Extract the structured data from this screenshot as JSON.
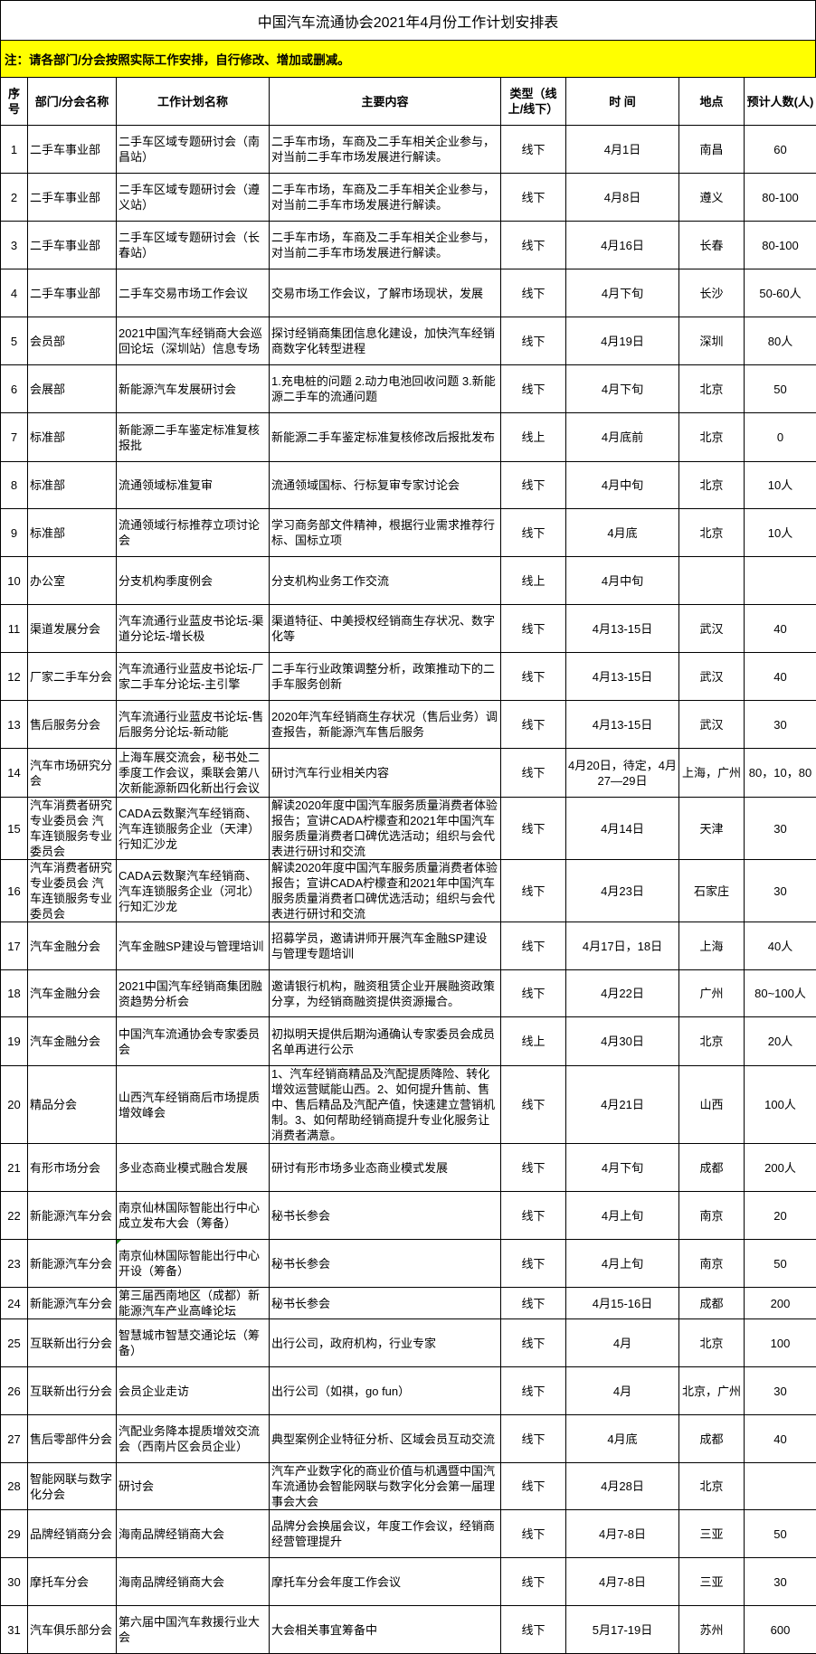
{
  "title": "中国汽车流通协会2021年4月份工作计划安排表",
  "note": "注：请各部门/分会按照实际工作安排，自行修改、增加或删减。",
  "columns": [
    "序号",
    "部门/分会名称",
    "工作计划名称",
    "主要内容",
    "类型（线上/线下）",
    "时 间",
    "地点",
    "预计人数(人)"
  ],
  "rows": [
    [
      "1",
      "二手车事业部",
      "二手车区域专题研讨会（南昌站）",
      "二手车市场，车商及二手车相关企业参与，对当前二手车市场发展进行解读。",
      "线下",
      "4月1日",
      "南昌",
      "60"
    ],
    [
      "2",
      "二手车事业部",
      "二手车区域专题研讨会（遵义站）",
      "二手车市场，车商及二手车相关企业参与，对当前二手车市场发展进行解读。",
      "线下",
      "4月8日",
      "遵义",
      "80-100"
    ],
    [
      "3",
      "二手车事业部",
      "二手车区域专题研讨会（长春站）",
      "二手车市场，车商及二手车相关企业参与，对当前二手车市场发展进行解读。",
      "线下",
      "4月16日",
      "长春",
      "80-100"
    ],
    [
      "4",
      "二手车事业部",
      "二手车交易市场工作会议",
      "交易市场工作会议，了解市场现状，发展",
      "线下",
      "4月下旬",
      "长沙",
      "50-60人"
    ],
    [
      "5",
      "会员部",
      "2021中国汽车经销商大会巡回论坛（深圳站）信息专场",
      "探讨经销商集团信息化建设，加快汽车经销商数字化转型进程",
      "线下",
      "4月19日",
      "深圳",
      "80人"
    ],
    [
      "6",
      "会展部",
      "新能源汽车发展研讨会",
      "1.充电桩的问题 2.动力电池回收问题 3.新能源二手车的流通问题",
      "线下",
      "4月下旬",
      "北京",
      "50"
    ],
    [
      "7",
      "标准部",
      "新能源二手车鉴定标准复核报批",
      "新能源二手车鉴定标准复核修改后报批发布",
      "线上",
      "4月底前",
      "北京",
      "0"
    ],
    [
      "8",
      "标准部",
      "流通领域标准复审",
      "流通领域国标、行标复审专家讨论会",
      "线下",
      "4月中旬",
      "北京",
      "10人"
    ],
    [
      "9",
      "标准部",
      "流通领域行标推荐立项讨论会",
      "学习商务部文件精神，根据行业需求推荐行标、国标立项",
      "线下",
      "4月底",
      "北京",
      "10人"
    ],
    [
      "10",
      "办公室",
      "分支机构季度例会",
      "分支机构业务工作交流",
      "线上",
      "4月中旬",
      "",
      ""
    ],
    [
      "11",
      "渠道发展分会",
      "汽车流通行业蓝皮书论坛-渠道分论坛-增长极",
      "渠道特征、中美授权经销商生存状况、数字化等",
      "线下",
      "4月13-15日",
      "武汉",
      "40"
    ],
    [
      "12",
      "厂家二手车分会",
      "汽车流通行业蓝皮书论坛-厂家二手车分论坛-主引擎",
      "二手车行业政策调整分析，政策推动下的二手车服务创新",
      "线下",
      "4月13-15日",
      "武汉",
      "40"
    ],
    [
      "13",
      "售后服务分会",
      "汽车流通行业蓝皮书论坛-售后服务分论坛-新动能",
      "2020年汽车经销商生存状况（售后业务）调查报告，新能源汽车售后服务",
      "线下",
      "4月13-15日",
      "武汉",
      "30"
    ],
    [
      "14",
      "汽车市场研究分会",
      "上海车展交流会，秘书处二季度工作会议，乘联会第八次新能源新四化新出行会议",
      "研讨汽车行业相关内容",
      "线下",
      "4月20日，待定，4月27—29日",
      "上海，广州",
      "80，10，80"
    ],
    [
      "15",
      "汽车消费者研究专业委员会 汽车连锁服务专业委员会",
      "CADA云数聚汽车经销商、汽车连锁服务企业（天津）行知汇沙龙",
      "解读2020年度中国汽车服务质量消费者体验报告；宣讲CADA柠檬查和2021年中国汽车服务质量消费者口碑优选活动；组织与会代表进行研讨和交流",
      "线下",
      "4月14日",
      "天津",
      "30"
    ],
    [
      "16",
      "汽车消费者研究专业委员会 汽车连锁服务专业委员会",
      "CADA云数聚汽车经销商、汽车连锁服务企业（河北）行知汇沙龙",
      "解读2020年度中国汽车服务质量消费者体验报告；宣讲CADA柠檬查和2021年中国汽车服务质量消费者口碑优选活动；组织与会代表进行研讨和交流",
      "线下",
      "4月23日",
      "石家庄",
      "30"
    ],
    [
      "17",
      "汽车金融分会",
      "汽车金融SP建设与管理培训",
      "招募学员，邀请讲师开展汽车金融SP建设与管理专题培训",
      "线下",
      "4月17日，18日",
      "上海",
      "40人"
    ],
    [
      "18",
      "汽车金融分会",
      "2021中国汽车经销商集团融资趋势分析会",
      "邀请银行机构，融资租赁企业开展融资政策分享，为经销商融资提供资源撮合。",
      "线下",
      "4月22日",
      "广州",
      "80~100人"
    ],
    [
      "19",
      "汽车金融分会",
      "中国汽车流通协会专家委员会",
      "初拟明天提供后期沟通确认专家委员会成员名单再进行公示",
      "线上",
      "4月30日",
      "北京",
      "20人"
    ],
    [
      "20",
      "精品分会",
      "山西汽车经销商后市场提质增效峰会",
      "1、汽车经销商精品及汽配提质降险、转化增效运营赋能山西。2、如何提升售前、售中、售后精品及汽配产值，快速建立营销机制。3、如何帮助经销商提升专业化服务让消费者满意。",
      "线下",
      "4月21日",
      "山西",
      "100人"
    ],
    [
      "21",
      "有形市场分会",
      "多业态商业模式融合发展",
      "研讨有形市场多业态商业模式发展",
      "线下",
      "4月下旬",
      "成都",
      "200人"
    ],
    [
      "22",
      "新能源汽车分会",
      "南京仙林国际智能出行中心成立发布大会（筹备）",
      "秘书长参会",
      "线下",
      "4月上旬",
      "南京",
      "20"
    ],
    [
      "23",
      "新能源汽车分会",
      "南京仙林国际智能出行中心开设（筹备）",
      "秘书长参会",
      "线下",
      "4月上旬",
      "南京",
      "50"
    ],
    [
      "24",
      "新能源汽车分会",
      "第三届西南地区（成都）新能源汽车产业高峰论坛",
      "秘书长参会",
      "线下",
      "4月15-16日",
      "成都",
      "200"
    ],
    [
      "25",
      "互联新出行分会",
      "智慧城市智慧交通论坛（筹备）",
      "出行公司，政府机构，行业专家",
      "线下",
      "4月",
      "北京",
      "100"
    ],
    [
      "26",
      "互联新出行分会",
      "会员企业走访",
      "出行公司（如祺，go fun）",
      "线下",
      "4月",
      "北京，广州",
      "30"
    ],
    [
      "27",
      "售后零部件分会",
      "汽配业务降本提质增效交流会（西南片区会员企业）",
      "典型案例企业特征分析、区域会员互动交流",
      "线下",
      "4月底",
      "成都",
      "40"
    ],
    [
      "28",
      "智能网联与数字化分会",
      "研讨会",
      "汽车产业数字化的商业价值与机遇暨中国汽车流通协会智能网联与数字化分会第一届理事会大会",
      "线下",
      "4月28日",
      "北京",
      ""
    ],
    [
      "29",
      "品牌经销商分会",
      "海南品牌经销商大会",
      "品牌分会换届会议，年度工作会议，经销商经营管理提升",
      "线下",
      "4月7-8日",
      "三亚",
      "50"
    ],
    [
      "30",
      "摩托车分会",
      "海南品牌经销商大会",
      "摩托车分会年度工作会议",
      "线下",
      "4月7-8日",
      "三亚",
      "30"
    ],
    [
      "31",
      "汽车俱乐部分会",
      "第六届中国汽车救援行业大会",
      "大会相关事宜筹备中",
      "线下",
      "5月17-19日",
      "苏州",
      "600"
    ]
  ],
  "colors": {
    "note_background": "#ffff00",
    "border": "#000000",
    "comment_marker": "#1a8a1a"
  }
}
